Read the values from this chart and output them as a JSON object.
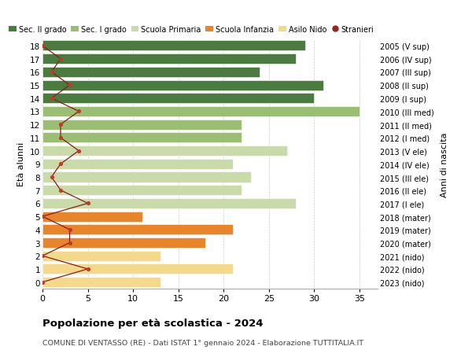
{
  "ages": [
    0,
    1,
    2,
    3,
    4,
    5,
    6,
    7,
    8,
    9,
    10,
    11,
    12,
    13,
    14,
    15,
    16,
    17,
    18
  ],
  "years": [
    "2023 (nido)",
    "2022 (nido)",
    "2021 (nido)",
    "2020 (mater)",
    "2019 (mater)",
    "2018 (mater)",
    "2017 (I ele)",
    "2016 (II ele)",
    "2015 (III ele)",
    "2014 (IV ele)",
    "2013 (V ele)",
    "2012 (I med)",
    "2011 (II med)",
    "2010 (III med)",
    "2009 (I sup)",
    "2008 (II sup)",
    "2007 (III sup)",
    "2006 (IV sup)",
    "2005 (V sup)"
  ],
  "bar_values": [
    13,
    21,
    13,
    18,
    21,
    11,
    28,
    22,
    23,
    21,
    27,
    22,
    22,
    35,
    30,
    31,
    24,
    28,
    29
  ],
  "bar_colors": [
    "#f5d98b",
    "#f5d98b",
    "#f5d98b",
    "#e8842a",
    "#e8842a",
    "#e8842a",
    "#c8dba8",
    "#c8dba8",
    "#c8dba8",
    "#c8dba8",
    "#c8dba8",
    "#9abf72",
    "#9abf72",
    "#9abf72",
    "#4a7c3f",
    "#4a7c3f",
    "#4a7c3f",
    "#4a7c3f",
    "#4a7c3f"
  ],
  "stranieri": [
    0,
    5,
    0,
    3,
    3,
    0,
    5,
    2,
    1,
    2,
    4,
    2,
    2,
    4,
    1,
    3,
    1,
    2,
    0
  ],
  "legend_labels": [
    "Sec. II grado",
    "Sec. I grado",
    "Scuola Primaria",
    "Scuola Infanzia",
    "Asilo Nido",
    "Stranieri"
  ],
  "legend_colors": [
    "#4a7c3f",
    "#9abf72",
    "#c8dba8",
    "#e8842a",
    "#f5d98b",
    "#a02020"
  ],
  "title": "Popolazione per età scolastica - 2024",
  "subtitle": "COMUNE DI VENTASSO (RE) - Dati ISTAT 1° gennaio 2024 - Elaborazione TUTTITALIA.IT",
  "ylabel_left": "Età alunni",
  "ylabel_right": "Anni di nascita",
  "xlim": [
    0,
    37
  ],
  "bg_color": "#ffffff",
  "grid_color": "#cccccc",
  "bar_height": 0.78
}
